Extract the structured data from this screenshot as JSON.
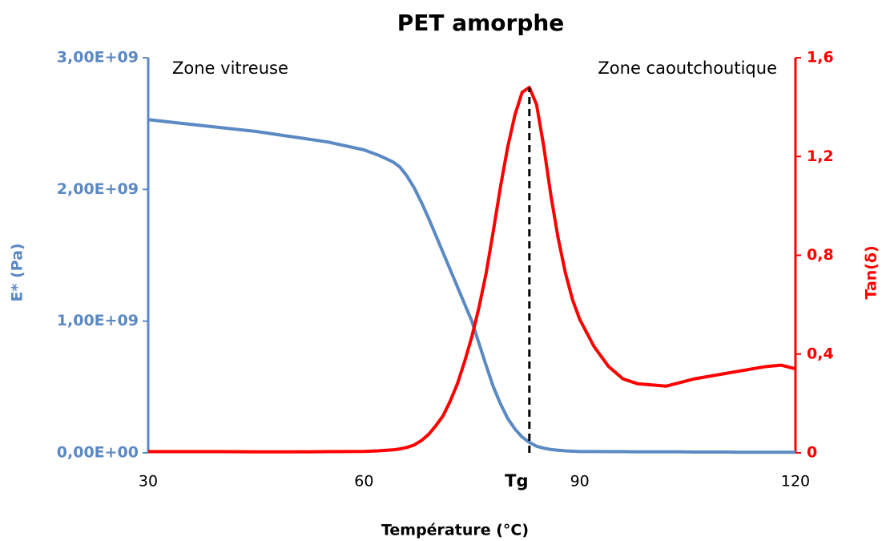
{
  "chart_data": {
    "type": "line",
    "title": "PET amorphe",
    "xlabel": "Température (°C)",
    "ylabel": "E* (Pa)",
    "y2label": "Tan(δ)",
    "annotations": [
      "Zone vitreuse",
      "Zone caoutchoutique"
    ],
    "marker_line": {
      "x": 83,
      "label": "Tg"
    },
    "x": [
      30,
      35,
      40,
      45,
      50,
      55,
      60,
      62,
      64,
      65,
      66,
      67,
      68,
      69,
      70,
      71,
      72,
      73,
      74,
      75,
      76,
      77,
      78,
      79,
      80,
      81,
      82,
      83,
      84,
      85,
      86,
      87,
      88,
      89,
      90,
      92,
      94,
      96,
      98,
      100,
      102,
      104,
      106,
      108,
      110,
      112,
      114,
      116,
      118,
      120
    ],
    "series": [
      {
        "name": "E*",
        "color": "#5b89c4",
        "axis": "y",
        "values": [
          2530000000.0,
          2500000000.0,
          2470000000.0,
          2440000000.0,
          2400000000.0,
          2360000000.0,
          2300000000.0,
          2260000000.0,
          2210000000.0,
          2170000000.0,
          2100000000.0,
          2010000000.0,
          1900000000.0,
          1780000000.0,
          1650000000.0,
          1520000000.0,
          1390000000.0,
          1260000000.0,
          1130000000.0,
          1000000000.0,
          830000000.0,
          660000000.0,
          500000000.0,
          370000000.0,
          260000000.0,
          180000000.0,
          120000000.0,
          80000000.0,
          50000000.0,
          35000000.0,
          25000000.0,
          20000000.0,
          15000000.0,
          12000000.0,
          10000000.0,
          10000000.0,
          9000000.0,
          9000000.0,
          8000000.0,
          8000000.0,
          7000000.0,
          7000000.0,
          6000000.0,
          6000000.0,
          6000000.0,
          5000000.0,
          5000000.0,
          5000000.0,
          5000000.0,
          5000000.0
        ]
      },
      {
        "name": "Tan(δ)",
        "color": "#ff0000",
        "axis": "y2",
        "values": [
          0.005,
          0.005,
          0.005,
          0.004,
          0.004,
          0.005,
          0.006,
          0.008,
          0.012,
          0.016,
          0.022,
          0.032,
          0.05,
          0.075,
          0.11,
          0.15,
          0.21,
          0.28,
          0.37,
          0.47,
          0.59,
          0.73,
          0.9,
          1.08,
          1.24,
          1.37,
          1.46,
          1.48,
          1.41,
          1.24,
          1.04,
          0.87,
          0.73,
          0.62,
          0.54,
          0.43,
          0.35,
          0.3,
          0.28,
          0.275,
          0.27,
          0.285,
          0.3,
          0.31,
          0.32,
          0.33,
          0.34,
          0.35,
          0.355,
          0.34
        ]
      }
    ],
    "xlim": [
      30,
      120
    ],
    "xticks": [
      30,
      60,
      90,
      120
    ],
    "ylim": [
      0,
      3000000000.0
    ],
    "yticks": [
      {
        "value": 0,
        "label": "0,00E+00"
      },
      {
        "value": 1000000000.0,
        "label": "1,00E+09"
      },
      {
        "value": 2000000000.0,
        "label": "2,00E+09"
      },
      {
        "value": 3000000000.0,
        "label": "3,00E+09"
      }
    ],
    "y2lim": [
      0,
      1.6
    ],
    "y2ticks": [
      0,
      {
        "value": 0.4,
        "label": "0,4"
      },
      {
        "value": 0.8,
        "label": "0,8"
      },
      {
        "value": 1.2,
        "label": "1,2"
      },
      {
        "value": 1.6,
        "label": "1,6"
      }
    ],
    "grid": false
  }
}
